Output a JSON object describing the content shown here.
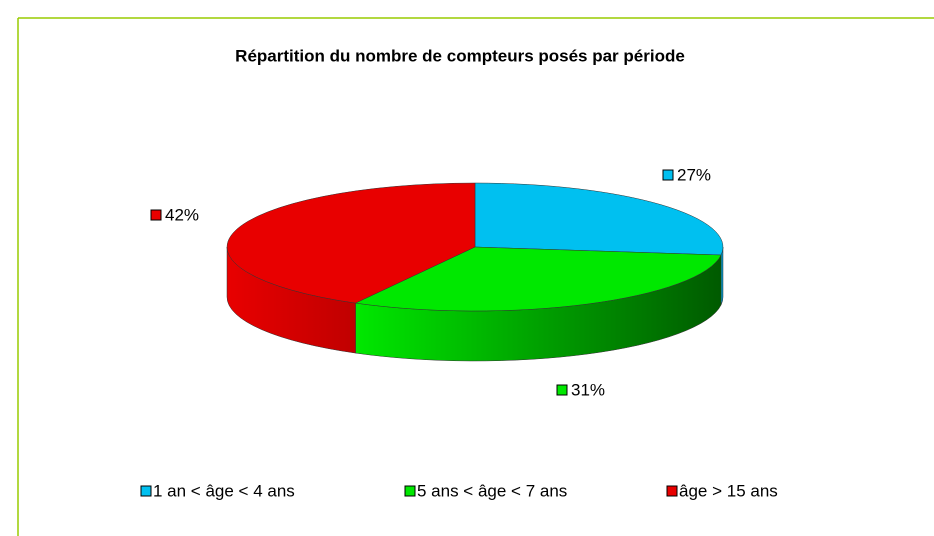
{
  "chart_data": {
    "type": "pie3d",
    "title": "Répartition du nombre de compteurs posés par période",
    "categories": [
      "1 an < âge < 4 ans",
      "5 ans < âge < 7 ans",
      "âge > 15 ans"
    ],
    "values": [
      27,
      31,
      42
    ],
    "value_labels": [
      "27%",
      "31%",
      "42%"
    ],
    "colors": [
      "#00c0f0",
      "#00e800",
      "#e80000"
    ],
    "legend": "bottom"
  }
}
